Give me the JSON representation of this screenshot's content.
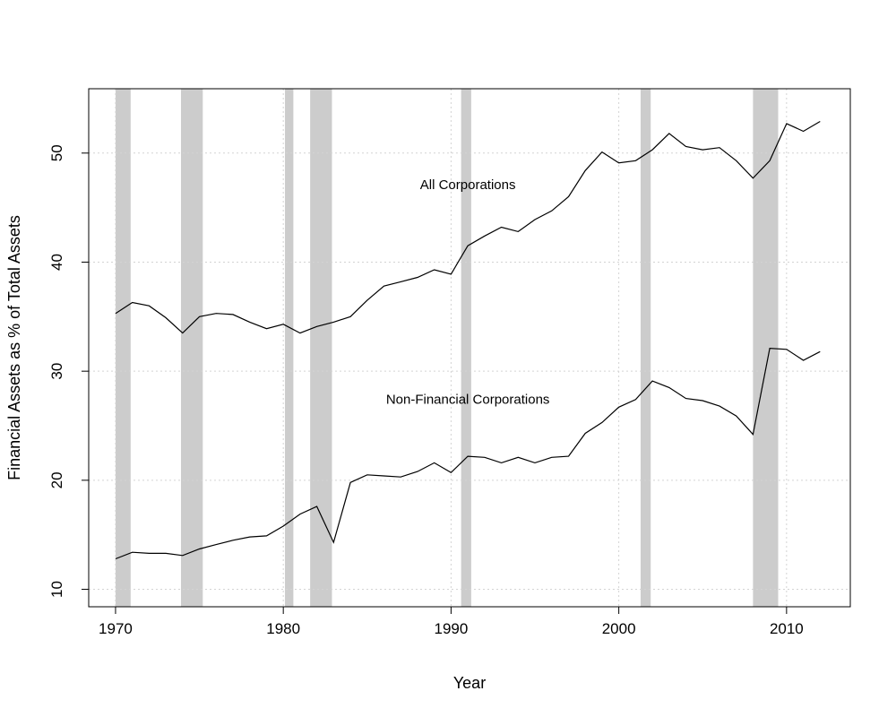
{
  "chart_data": {
    "type": "line",
    "title": "",
    "xlabel": "Year",
    "ylabel": "Financial Assets as % of Total Assets",
    "xlim": [
      1968.4,
      2013.8
    ],
    "ylim": [
      8.4,
      55.9
    ],
    "x_ticks": [
      1970,
      1980,
      1990,
      2000,
      2010
    ],
    "y_ticks": [
      10,
      20,
      30,
      40,
      50
    ],
    "grid": true,
    "legend": "none",
    "recession_shading_color": "#cccccc",
    "line_color": "#000000",
    "recessions": [
      [
        1970.0,
        1970.9
      ],
      [
        1973.9,
        1975.2
      ],
      [
        1980.1,
        1980.6
      ],
      [
        1981.6,
        1982.9
      ],
      [
        1990.6,
        1991.2
      ],
      [
        2001.3,
        2001.9
      ],
      [
        2008.0,
        2009.5
      ]
    ],
    "series": [
      {
        "name": "All Corporations",
        "x": [
          1970,
          1971,
          1972,
          1973,
          1974,
          1975,
          1976,
          1977,
          1978,
          1979,
          1980,
          1981,
          1982,
          1983,
          1984,
          1985,
          1986,
          1987,
          1988,
          1989,
          1990,
          1991,
          1992,
          1993,
          1994,
          1995,
          1996,
          1997,
          1998,
          1999,
          2000,
          2001,
          2002,
          2003,
          2004,
          2005,
          2006,
          2007,
          2008,
          2009,
          2010,
          2011,
          2012
        ],
        "values": [
          35.3,
          36.3,
          36.0,
          34.9,
          33.5,
          35.0,
          35.3,
          35.2,
          34.5,
          33.9,
          34.3,
          33.5,
          34.1,
          34.5,
          35.0,
          36.5,
          37.8,
          38.2,
          38.6,
          39.3,
          38.9,
          41.5,
          42.4,
          43.2,
          42.8,
          43.9,
          44.7,
          46.0,
          48.4,
          50.1,
          49.1,
          49.3,
          50.3,
          51.8,
          50.6,
          50.3,
          50.5,
          49.3,
          47.7,
          49.3,
          52.7,
          52.0,
          52.9
        ]
      },
      {
        "name": "Non-Financial Corporations",
        "x": [
          1970,
          1971,
          1972,
          1973,
          1974,
          1975,
          1976,
          1977,
          1978,
          1979,
          1980,
          1981,
          1982,
          1983,
          1984,
          1985,
          1986,
          1987,
          1988,
          1989,
          1990,
          1991,
          1992,
          1993,
          1994,
          1995,
          1996,
          1997,
          1998,
          1999,
          2000,
          2001,
          2002,
          2003,
          2004,
          2005,
          2006,
          2007,
          2008,
          2009,
          2010,
          2011,
          2012
        ],
        "values": [
          12.8,
          13.4,
          13.3,
          13.3,
          13.1,
          13.7,
          14.1,
          14.5,
          14.8,
          14.9,
          15.8,
          16.9,
          17.6,
          14.3,
          19.8,
          20.5,
          20.4,
          20.3,
          20.8,
          21.6,
          20.7,
          22.2,
          22.1,
          21.6,
          22.1,
          21.6,
          22.1,
          22.2,
          24.3,
          25.3,
          26.7,
          27.4,
          29.1,
          28.5,
          27.5,
          27.3,
          26.8,
          25.9,
          24.2,
          32.1,
          32.0,
          31.0,
          31.8
        ]
      }
    ],
    "annotations": [
      {
        "text": "All Corporations",
        "x": 1991.0,
        "y": 46.7
      },
      {
        "text": "Non-Financial Corporations",
        "x": 1991.0,
        "y": 27.0
      }
    ]
  }
}
